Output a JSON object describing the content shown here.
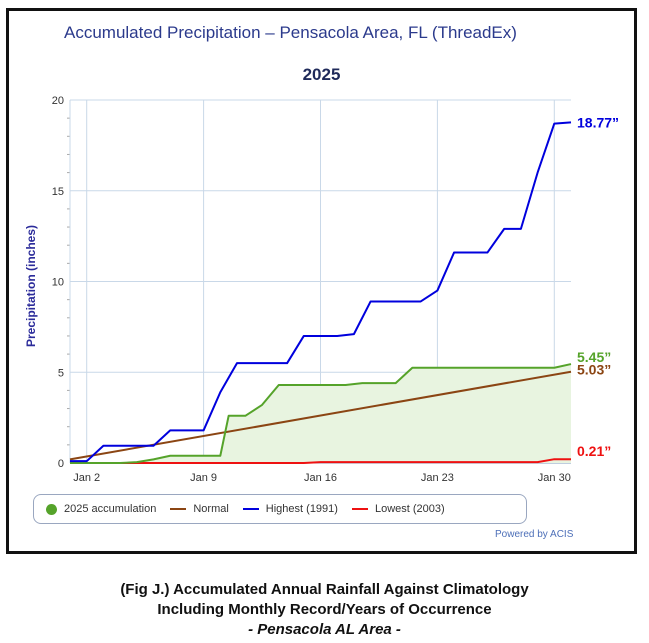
{
  "title": "Accumulated Precipitation – Pensacola Area, FL (ThreadEx)",
  "subtitle": "2025",
  "caption": {
    "line1": "(Fig J.) Accumulated Annual Rainfall Against  Climatology",
    "line2": "Including Monthly Record/Years of Occurrence",
    "line3": "- Pensacola AL Area -"
  },
  "credit": "Powered by ACIS",
  "colors": {
    "accumulation": "#55a32a",
    "normal": "#8b4513",
    "highest": "#0000dd",
    "lowest": "#ee1111",
    "fill": "#e8f4e0"
  },
  "chart_data": {
    "type": "line",
    "ylabel": "Precipitation (inches)",
    "ylim": [
      0,
      20
    ],
    "yticks": [
      "0",
      "5",
      "10",
      "15",
      "20"
    ],
    "xlim": [
      1,
      31
    ],
    "xticks": [
      {
        "day": 2,
        "label": "Jan 2"
      },
      {
        "day": 9,
        "label": "Jan 9"
      },
      {
        "day": 16,
        "label": "Jan 16"
      },
      {
        "day": 23,
        "label": "Jan 23"
      },
      {
        "day": 30,
        "label": "Jan 30"
      }
    ],
    "grid": true,
    "legend_position": "bottom",
    "series": [
      {
        "name": "2025 accumulation",
        "key": "accumulation",
        "filled": true,
        "end_label": "5.45”",
        "points": [
          [
            1,
            0
          ],
          [
            4,
            0
          ],
          [
            5,
            0.05
          ],
          [
            6,
            0.2
          ],
          [
            7,
            0.4
          ],
          [
            8,
            0.4
          ],
          [
            9,
            0.4
          ],
          [
            10,
            0.4
          ],
          [
            10.5,
            2.6
          ],
          [
            11.5,
            2.6
          ],
          [
            12.5,
            3.2
          ],
          [
            13.5,
            4.3
          ],
          [
            14.5,
            4.3
          ],
          [
            15.5,
            4.3
          ],
          [
            16.5,
            4.3
          ],
          [
            17.5,
            4.3
          ],
          [
            18.5,
            4.4
          ],
          [
            19.5,
            4.4
          ],
          [
            20.5,
            4.4
          ],
          [
            21.5,
            5.25
          ],
          [
            22.5,
            5.25
          ],
          [
            30,
            5.25
          ],
          [
            31,
            5.45
          ]
        ]
      },
      {
        "name": "Normal",
        "key": "normal",
        "end_label": "5.03”",
        "points": [
          [
            1,
            0.2
          ],
          [
            31,
            5.03
          ]
        ]
      },
      {
        "name": "Highest (1991)",
        "key": "highest",
        "end_label": "18.77”",
        "points": [
          [
            1,
            0.1
          ],
          [
            2,
            0.1
          ],
          [
            3,
            0.95
          ],
          [
            4,
            0.95
          ],
          [
            5,
            0.95
          ],
          [
            6,
            0.95
          ],
          [
            7,
            1.8
          ],
          [
            8,
            1.8
          ],
          [
            9,
            1.8
          ],
          [
            10,
            3.9
          ],
          [
            11,
            5.5
          ],
          [
            12,
            5.5
          ],
          [
            13,
            5.5
          ],
          [
            14,
            5.5
          ],
          [
            15,
            7.0
          ],
          [
            16,
            7.0
          ],
          [
            17,
            7.0
          ],
          [
            18,
            7.1
          ],
          [
            19,
            8.9
          ],
          [
            20,
            8.9
          ],
          [
            21,
            8.9
          ],
          [
            22,
            8.9
          ],
          [
            23,
            9.5
          ],
          [
            24,
            11.6
          ],
          [
            25,
            11.6
          ],
          [
            26,
            11.6
          ],
          [
            27,
            12.9
          ],
          [
            28,
            12.9
          ],
          [
            29,
            16.0
          ],
          [
            30,
            18.7
          ],
          [
            31,
            18.77
          ]
        ]
      },
      {
        "name": "Lowest (2003)",
        "key": "lowest",
        "end_label": "0.21”",
        "points": [
          [
            1,
            0
          ],
          [
            15,
            0
          ],
          [
            16,
            0.05
          ],
          [
            29,
            0.05
          ],
          [
            30,
            0.21
          ],
          [
            31,
            0.21
          ]
        ]
      }
    ]
  }
}
